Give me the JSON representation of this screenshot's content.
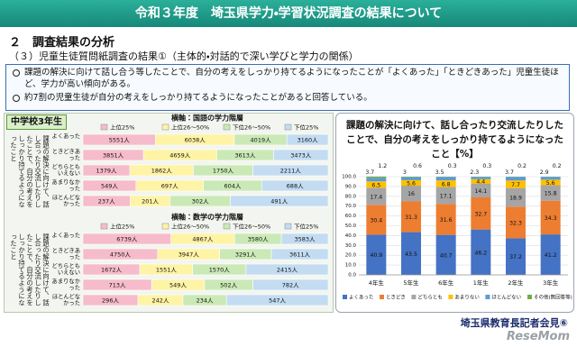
{
  "header": {
    "title": "令和３年度　埼玉県学力・学習状況調査の結果について"
  },
  "section": "２　調査結果の分析",
  "subsection": "（３）児童生徒質問紙調査の結果①（主体的・対話的で深い学びと学力の関係）",
  "bullets": [
    "課題の解決に向けて話し合う等したことで、自分の考えをしっかり持てるようになったことが「よくあった」「ときどきあった」児童生徒ほど、学力が高い傾向がある。",
    "約7割の児童生徒が自分の考えをしっかり持てるようになったことがあると回答している。"
  ],
  "panel_label": "中学校3年生",
  "question": "課題の解決に向けて、話し合ったり交流したりしたことで、自分の考えをしっかり持てるようになったこと",
  "footer": "埼玉県教育長記者会見⑥",
  "watermark": "ReseMom",
  "chart_data": [
    {
      "type": "stacked_hbar",
      "title": "横軸：国語の学力階層",
      "categories": [
        "よくあった",
        "ときどきあった",
        "どちらともいえない",
        "あまりなかった",
        "ほとんどなかった"
      ],
      "series": [
        {
          "name": "上位25%",
          "color": "#f6bccb",
          "values": [
            5551,
            3851,
            1379,
            549,
            237
          ],
          "value_labels": [
            "5551人",
            "3851人",
            "1379人",
            "549人",
            "237人"
          ]
        },
        {
          "name": "上位26～50%",
          "color": "#fff3a6",
          "values": [
            6038,
            4659,
            1862,
            697,
            201
          ],
          "value_labels": [
            "6038人",
            "4659人",
            "1862人",
            "697人",
            "201人"
          ]
        },
        {
          "name": "下位26～50%",
          "color": "#cbe9b6",
          "values": [
            4019,
            3613,
            1750,
            604,
            302
          ],
          "value_labels": [
            "4019人",
            "3613人",
            "1750人",
            "604人",
            "302人"
          ]
        },
        {
          "name": "下位25%",
          "color": "#c3dcf2",
          "values": [
            3160,
            3473,
            2211,
            688,
            491
          ],
          "value_labels": [
            "3160人",
            "3473人",
            "2211人",
            "688人",
            "491人"
          ]
        }
      ]
    },
    {
      "type": "stacked_hbar",
      "title": "横軸：数学の学力階層",
      "categories": [
        "よくあった",
        "ときどきあった",
        "どちらともいえない",
        "あまりなかった",
        "ほとんどなかった"
      ],
      "series": [
        {
          "name": "上位25%",
          "color": "#f6bccb",
          "values": [
            6739,
            4750,
            1672,
            713,
            296
          ],
          "value_labels": [
            "6739人",
            "4750人",
            "1672人",
            "713人",
            "296人"
          ]
        },
        {
          "name": "上位26～50%",
          "color": "#fff3a6",
          "values": [
            4867,
            3947,
            1551,
            549,
            242
          ],
          "value_labels": [
            "4867人",
            "3947人",
            "1551人",
            "549人",
            "242人"
          ]
        },
        {
          "name": "下位26～50%",
          "color": "#cbe9b6",
          "values": [
            3580,
            3291,
            1570,
            502,
            234
          ],
          "value_labels": [
            "3580人",
            "3291人",
            "1570人",
            "502人",
            "234人"
          ]
        },
        {
          "name": "下位25%",
          "color": "#c3dcf2",
          "values": [
            3583,
            3611,
            2415,
            782,
            547
          ],
          "value_labels": [
            "3583人",
            "3611人",
            "2415人",
            "782人",
            "547人"
          ]
        }
      ]
    },
    {
      "type": "stacked_bar",
      "title": "課題の解決に向けて、話し合ったり交流したりしたことで、自分の考えをしっかり持てるようになったこと【%】",
      "categories": [
        "4年生",
        "5年生",
        "6年生",
        "1年生",
        "2年生",
        "3年生"
      ],
      "series": [
        {
          "name": "よくあった",
          "color": "#4472c4",
          "values": [
            40.9,
            43.5,
            40.7,
            46.2,
            37.2,
            41.2
          ]
        },
        {
          "name": "ときどき",
          "color": "#ed7d31",
          "values": [
            30.4,
            31.3,
            31.6,
            32.7,
            32.3,
            34.3
          ]
        },
        {
          "name": "どちらとも",
          "color": "#a5a5a5",
          "values": [
            17.4,
            16.0,
            17.1,
            14.1,
            18.9,
            15.8
          ]
        },
        {
          "name": "あまりない",
          "color": "#ffc000",
          "values": [
            6.5,
            5.6,
            6.8,
            4.4,
            7.7,
            5.6
          ]
        },
        {
          "name": "ほとんどない",
          "color": "#5b9bd5",
          "values": [
            3.7,
            3.0,
            3.5,
            2.3,
            3.7,
            2.9
          ]
        },
        {
          "name": "その他(無回答等)",
          "color": "#70ad47",
          "values": [
            1.2,
            0.6,
            0.3,
            0.3,
            0.2,
            0.2
          ]
        }
      ],
      "ylim": [
        0,
        100
      ],
      "yticks": [
        {
          "value": 0,
          "label": "0.0"
        },
        {
          "value": 10,
          "label": "10.0"
        },
        {
          "value": 20,
          "label": "20.0"
        },
        {
          "value": 30,
          "label": "30.0"
        },
        {
          "value": 40,
          "label": "40.0"
        },
        {
          "value": 50,
          "label": "50.0"
        },
        {
          "value": 60,
          "label": "60.0"
        },
        {
          "value": 70,
          "label": "70.0"
        },
        {
          "value": 80,
          "label": "80.0"
        },
        {
          "value": 90,
          "label": "90.0"
        },
        {
          "value": 100,
          "label": "100.0"
        }
      ],
      "grid": true,
      "legend": "bottom"
    }
  ]
}
